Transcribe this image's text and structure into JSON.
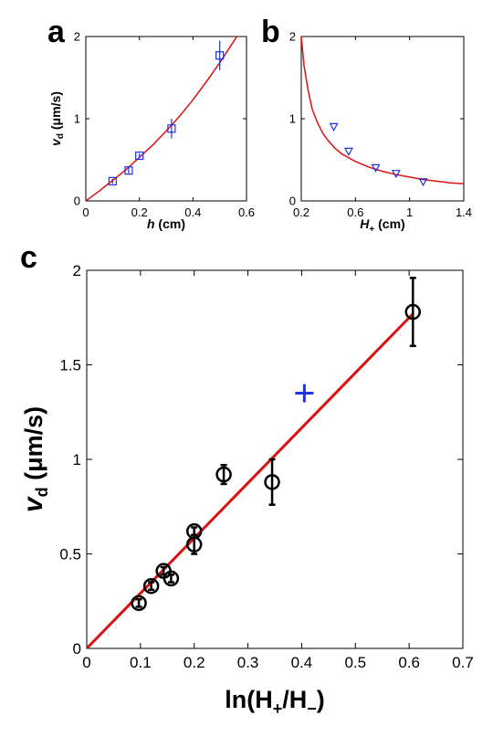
{
  "chart_data": [
    {
      "panel": "a",
      "type": "scatter",
      "xlabel_main": "h",
      "xlabel_unit": " (cm)",
      "ylabel_main": "v",
      "ylabel_sub": "d",
      "ylabel_unit": " (μm/s)",
      "xlim": [
        0,
        0.6
      ],
      "ylim": [
        0,
        2
      ],
      "xticks": [
        "0",
        "0.2",
        "0.4",
        "0.6"
      ],
      "yticks": [
        "0",
        "1",
        "2"
      ],
      "xtick_values": [
        0,
        0.2,
        0.4,
        0.6
      ],
      "ytick_values": [
        0,
        1,
        2
      ],
      "marker": "square",
      "marker_color": "#2233dd",
      "line_color": "#dd1111",
      "points": [
        {
          "x": 0.1,
          "y": 0.24,
          "err": 0.03
        },
        {
          "x": 0.16,
          "y": 0.37,
          "err": 0.04
        },
        {
          "x": 0.2,
          "y": 0.55,
          "err": 0.03
        },
        {
          "x": 0.32,
          "y": 0.88,
          "err": 0.12
        },
        {
          "x": 0.5,
          "y": 1.77,
          "err": 0.18
        }
      ],
      "fit_curve": {
        "x": [
          0,
          0.05,
          0.1,
          0.15,
          0.2,
          0.25,
          0.3,
          0.35,
          0.4,
          0.45,
          0.5,
          0.55,
          0.57
        ],
        "y": [
          0,
          0.12,
          0.25,
          0.38,
          0.53,
          0.68,
          0.85,
          1.03,
          1.23,
          1.45,
          1.68,
          1.93,
          2.03
        ]
      }
    },
    {
      "panel": "b",
      "type": "scatter",
      "xlabel_main": "H",
      "xlabel_sub": "+",
      "xlabel_unit": " (cm)",
      "xlim": [
        0.2,
        1.4
      ],
      "ylim": [
        0,
        2
      ],
      "xticks": [
        "0.2",
        "0.6",
        "1",
        "1.4"
      ],
      "yticks": [
        "0",
        "1",
        "2"
      ],
      "xtick_values": [
        0.2,
        0.6,
        1.0,
        1.4
      ],
      "ytick_values": [
        0,
        1,
        2
      ],
      "marker": "triangle-down",
      "marker_color": "#2233dd",
      "line_color": "#dd1111",
      "points": [
        {
          "x": 0.44,
          "y": 0.9
        },
        {
          "x": 0.55,
          "y": 0.6
        },
        {
          "x": 0.75,
          "y": 0.4
        },
        {
          "x": 0.9,
          "y": 0.33
        },
        {
          "x": 1.1,
          "y": 0.23
        }
      ],
      "fit_curve": {
        "x": [
          0.2,
          0.22,
          0.25,
          0.28,
          0.32,
          0.36,
          0.4,
          0.45,
          0.5,
          0.6,
          0.7,
          0.8,
          0.9,
          1.0,
          1.1,
          1.2,
          1.3,
          1.4
        ],
        "y": [
          2.0,
          1.65,
          1.35,
          1.12,
          0.95,
          0.82,
          0.73,
          0.64,
          0.57,
          0.48,
          0.41,
          0.36,
          0.32,
          0.29,
          0.26,
          0.24,
          0.22,
          0.21
        ]
      }
    },
    {
      "panel": "c",
      "type": "scatter",
      "xlabel": "ln(H+/H−)",
      "xlabel_parts": [
        "ln(H",
        "+",
        "/H",
        "−",
        ")"
      ],
      "ylabel_main": "v",
      "ylabel_sub": "d",
      "ylabel_unit": " (μm/s)",
      "xlim": [
        0,
        0.7
      ],
      "ylim": [
        0,
        2
      ],
      "xticks": [
        "0",
        "0.1",
        "0.2",
        "0.3",
        "0.4",
        "0.5",
        "0.6",
        "0.7"
      ],
      "yticks": [
        "0",
        "0.5",
        "1",
        "1.5",
        "2"
      ],
      "xtick_values": [
        0,
        0.1,
        0.2,
        0.3,
        0.4,
        0.5,
        0.6,
        0.7
      ],
      "ytick_values": [
        0,
        0.5,
        1,
        1.5,
        2
      ],
      "marker": "circle",
      "marker_color": "#000000",
      "line_color": "#dd1111",
      "points": [
        {
          "x": 0.097,
          "y": 0.24,
          "err": 0.02
        },
        {
          "x": 0.12,
          "y": 0.33,
          "err": 0.02
        },
        {
          "x": 0.143,
          "y": 0.41,
          "err": 0.02
        },
        {
          "x": 0.157,
          "y": 0.37,
          "err": 0.02
        },
        {
          "x": 0.2,
          "y": 0.62,
          "err": 0.02
        },
        {
          "x": 0.2,
          "y": 0.55,
          "err": 0.05
        },
        {
          "x": 0.255,
          "y": 0.92,
          "err": 0.05
        },
        {
          "x": 0.345,
          "y": 0.88,
          "err": 0.12
        },
        {
          "x": 0.607,
          "y": 1.78,
          "err": 0.18
        }
      ],
      "extra_point": {
        "x": 0.405,
        "y": 1.35,
        "marker": "plus",
        "color": "#2233dd"
      },
      "fit_line": {
        "x": [
          0,
          0.607
        ],
        "y": [
          0,
          1.77
        ]
      }
    }
  ],
  "panel_letters": {
    "a": "a",
    "b": "b",
    "c": "c"
  }
}
